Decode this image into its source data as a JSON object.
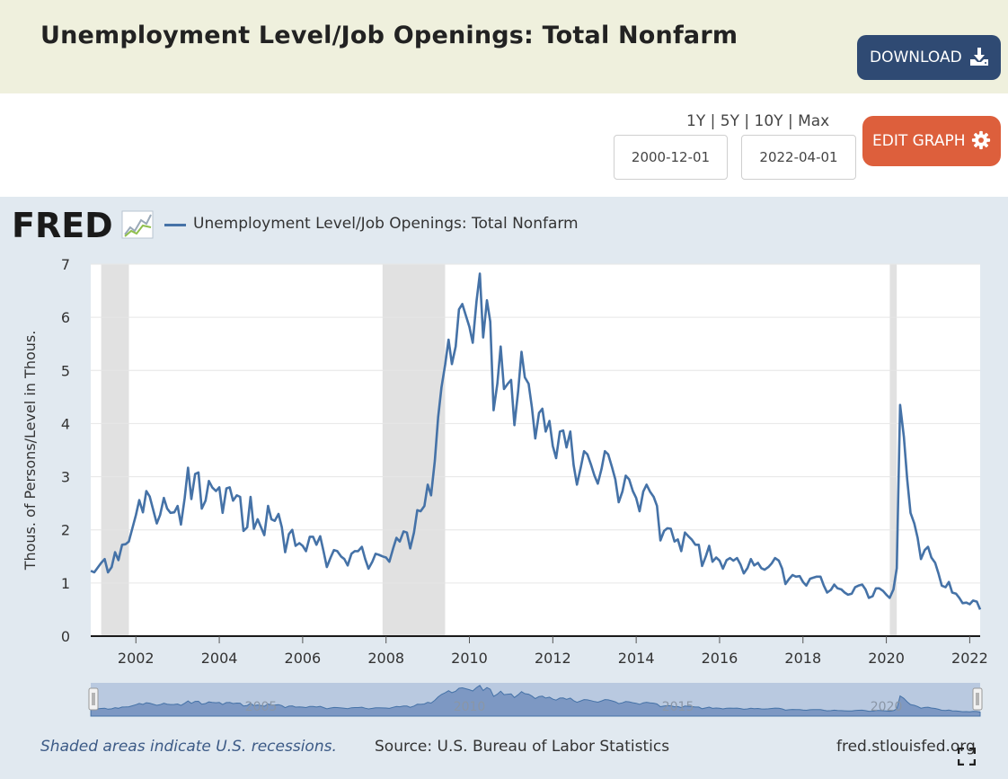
{
  "header": {
    "title": "Unemployment Level/Job Openings: Total Nonfarm",
    "download_label": "DOWNLOAD",
    "download_icon": "download-icon"
  },
  "controls": {
    "range_1y": "1Y",
    "range_5y": "5Y",
    "range_10y": "10Y",
    "range_max": "Max",
    "separator": "|",
    "start_date": "2000-12-01",
    "end_date": "2022-04-01",
    "edit_label": "EDIT GRAPH",
    "edit_icon": "gear-icon"
  },
  "graph": {
    "logo_text": "FRED",
    "logo_icon": "fred-chart-icon",
    "legend_label": "Unemployment Level/Job Openings: Total Nonfarm",
    "footer_note": "Shaded areas indicate U.S. recessions.",
    "footer_source": "Source: U.S. Bureau of Labor Statistics",
    "footer_site": "fred.stlouisfed.org",
    "fullscreen_icon": "fullscreen-icon"
  },
  "colors": {
    "series": "#4572a7",
    "recession": "#e1e1e1",
    "download_bg": "#2f4a73",
    "edit_bg": "#dd5f3c",
    "header_bg": "#eff0dd",
    "graph_bg": "#e1e9f0"
  },
  "chart_data": {
    "type": "line",
    "title": "",
    "xlabel": "",
    "ylabel": "Thous. of Persons/Level in Thous.",
    "xlim": [
      2000.917,
      2022.25
    ],
    "ylim": [
      0,
      7
    ],
    "yticks": [
      0,
      1,
      2,
      3,
      4,
      5,
      6,
      7
    ],
    "xticks": [
      2002,
      2004,
      2006,
      2008,
      2010,
      2012,
      2014,
      2016,
      2018,
      2020,
      2022
    ],
    "navigator_labels": [
      "2005",
      "2010",
      "2015",
      "2020"
    ],
    "grid": true,
    "legend_position": "top-left",
    "recessions": [
      [
        2001.167,
        2001.833
      ],
      [
        2007.917,
        2009.417
      ],
      [
        2020.083,
        2020.25
      ]
    ],
    "series": [
      {
        "name": "Unemployment Level/Job Openings: Total Nonfarm",
        "points": [
          [
            2000.92,
            1.23
          ],
          [
            2001.0,
            1.2
          ],
          [
            2001.17,
            1.38
          ],
          [
            2001.25,
            1.45
          ],
          [
            2001.33,
            1.2
          ],
          [
            2001.42,
            1.3
          ],
          [
            2001.5,
            1.58
          ],
          [
            2001.58,
            1.43
          ],
          [
            2001.67,
            1.72
          ],
          [
            2001.75,
            1.73
          ],
          [
            2001.83,
            1.78
          ],
          [
            2002.0,
            2.28
          ],
          [
            2002.08,
            2.56
          ],
          [
            2002.17,
            2.33
          ],
          [
            2002.25,
            2.73
          ],
          [
            2002.33,
            2.63
          ],
          [
            2002.5,
            2.12
          ],
          [
            2002.58,
            2.28
          ],
          [
            2002.67,
            2.6
          ],
          [
            2002.75,
            2.4
          ],
          [
            2002.83,
            2.32
          ],
          [
            2002.92,
            2.33
          ],
          [
            2003.0,
            2.45
          ],
          [
            2003.08,
            2.1
          ],
          [
            2003.17,
            2.6
          ],
          [
            2003.25,
            3.17
          ],
          [
            2003.33,
            2.58
          ],
          [
            2003.42,
            3.05
          ],
          [
            2003.5,
            3.08
          ],
          [
            2003.58,
            2.4
          ],
          [
            2003.67,
            2.55
          ],
          [
            2003.75,
            2.92
          ],
          [
            2003.83,
            2.8
          ],
          [
            2003.92,
            2.73
          ],
          [
            2004.0,
            2.8
          ],
          [
            2004.08,
            2.32
          ],
          [
            2004.17,
            2.78
          ],
          [
            2004.25,
            2.8
          ],
          [
            2004.33,
            2.55
          ],
          [
            2004.42,
            2.65
          ],
          [
            2004.5,
            2.62
          ],
          [
            2004.58,
            1.98
          ],
          [
            2004.67,
            2.05
          ],
          [
            2004.75,
            2.62
          ],
          [
            2004.83,
            2.02
          ],
          [
            2004.92,
            2.2
          ],
          [
            2005.0,
            2.05
          ],
          [
            2005.08,
            1.9
          ],
          [
            2005.17,
            2.45
          ],
          [
            2005.25,
            2.2
          ],
          [
            2005.33,
            2.17
          ],
          [
            2005.42,
            2.3
          ],
          [
            2005.5,
            2.05
          ],
          [
            2005.58,
            1.58
          ],
          [
            2005.67,
            1.92
          ],
          [
            2005.75,
            2.0
          ],
          [
            2005.83,
            1.7
          ],
          [
            2005.92,
            1.75
          ],
          [
            2006.0,
            1.7
          ],
          [
            2006.08,
            1.6
          ],
          [
            2006.17,
            1.87
          ],
          [
            2006.25,
            1.87
          ],
          [
            2006.33,
            1.72
          ],
          [
            2006.42,
            1.88
          ],
          [
            2006.5,
            1.6
          ],
          [
            2006.58,
            1.3
          ],
          [
            2006.67,
            1.48
          ],
          [
            2006.75,
            1.62
          ],
          [
            2006.83,
            1.6
          ],
          [
            2006.92,
            1.5
          ],
          [
            2007.0,
            1.45
          ],
          [
            2007.08,
            1.33
          ],
          [
            2007.17,
            1.55
          ],
          [
            2007.25,
            1.6
          ],
          [
            2007.33,
            1.6
          ],
          [
            2007.42,
            1.68
          ],
          [
            2007.5,
            1.45
          ],
          [
            2007.58,
            1.27
          ],
          [
            2007.67,
            1.4
          ],
          [
            2007.75,
            1.55
          ],
          [
            2007.83,
            1.53
          ],
          [
            2007.92,
            1.5
          ],
          [
            2008.0,
            1.48
          ],
          [
            2008.08,
            1.4
          ],
          [
            2008.17,
            1.65
          ],
          [
            2008.25,
            1.85
          ],
          [
            2008.33,
            1.78
          ],
          [
            2008.42,
            1.97
          ],
          [
            2008.5,
            1.95
          ],
          [
            2008.58,
            1.65
          ],
          [
            2008.67,
            1.95
          ],
          [
            2008.75,
            2.37
          ],
          [
            2008.83,
            2.35
          ],
          [
            2008.92,
            2.45
          ],
          [
            2009.0,
            2.85
          ],
          [
            2009.08,
            2.65
          ],
          [
            2009.17,
            3.3
          ],
          [
            2009.25,
            4.12
          ],
          [
            2009.33,
            4.68
          ],
          [
            2009.42,
            5.12
          ],
          [
            2009.5,
            5.58
          ],
          [
            2009.58,
            5.12
          ],
          [
            2009.67,
            5.45
          ],
          [
            2009.75,
            6.15
          ],
          [
            2009.83,
            6.25
          ],
          [
            2009.92,
            6.02
          ],
          [
            2010.0,
            5.82
          ],
          [
            2010.08,
            5.52
          ],
          [
            2010.17,
            6.3
          ],
          [
            2010.25,
            6.82
          ],
          [
            2010.33,
            5.62
          ],
          [
            2010.42,
            6.32
          ],
          [
            2010.5,
            5.92
          ],
          [
            2010.58,
            4.25
          ],
          [
            2010.67,
            4.75
          ],
          [
            2010.75,
            5.45
          ],
          [
            2010.83,
            4.65
          ],
          [
            2010.92,
            4.75
          ],
          [
            2011.0,
            4.82
          ],
          [
            2011.08,
            3.97
          ],
          [
            2011.17,
            4.62
          ],
          [
            2011.25,
            5.35
          ],
          [
            2011.33,
            4.87
          ],
          [
            2011.42,
            4.75
          ],
          [
            2011.5,
            4.3
          ],
          [
            2011.58,
            3.72
          ],
          [
            2011.67,
            4.2
          ],
          [
            2011.75,
            4.28
          ],
          [
            2011.83,
            3.85
          ],
          [
            2011.92,
            4.05
          ],
          [
            2012.0,
            3.58
          ],
          [
            2012.08,
            3.35
          ],
          [
            2012.17,
            3.85
          ],
          [
            2012.25,
            3.87
          ],
          [
            2012.33,
            3.55
          ],
          [
            2012.42,
            3.85
          ],
          [
            2012.5,
            3.22
          ],
          [
            2012.58,
            2.85
          ],
          [
            2012.67,
            3.17
          ],
          [
            2012.75,
            3.48
          ],
          [
            2012.83,
            3.42
          ],
          [
            2012.92,
            3.22
          ],
          [
            2013.0,
            3.02
          ],
          [
            2013.08,
            2.87
          ],
          [
            2013.17,
            3.15
          ],
          [
            2013.25,
            3.48
          ],
          [
            2013.33,
            3.42
          ],
          [
            2013.42,
            3.18
          ],
          [
            2013.5,
            2.95
          ],
          [
            2013.58,
            2.52
          ],
          [
            2013.67,
            2.72
          ],
          [
            2013.75,
            3.02
          ],
          [
            2013.83,
            2.95
          ],
          [
            2013.92,
            2.73
          ],
          [
            2014.0,
            2.6
          ],
          [
            2014.08,
            2.35
          ],
          [
            2014.17,
            2.72
          ],
          [
            2014.25,
            2.85
          ],
          [
            2014.33,
            2.72
          ],
          [
            2014.42,
            2.62
          ],
          [
            2014.5,
            2.45
          ],
          [
            2014.58,
            1.8
          ],
          [
            2014.67,
            1.98
          ],
          [
            2014.75,
            2.03
          ],
          [
            2014.83,
            2.02
          ],
          [
            2014.92,
            1.78
          ],
          [
            2015.0,
            1.82
          ],
          [
            2015.08,
            1.6
          ],
          [
            2015.17,
            1.95
          ],
          [
            2015.25,
            1.88
          ],
          [
            2015.33,
            1.82
          ],
          [
            2015.42,
            1.72
          ],
          [
            2015.5,
            1.72
          ],
          [
            2015.58,
            1.32
          ],
          [
            2015.67,
            1.5
          ],
          [
            2015.75,
            1.7
          ],
          [
            2015.83,
            1.4
          ],
          [
            2015.92,
            1.48
          ],
          [
            2016.0,
            1.42
          ],
          [
            2016.08,
            1.27
          ],
          [
            2016.17,
            1.43
          ],
          [
            2016.25,
            1.47
          ],
          [
            2016.33,
            1.42
          ],
          [
            2016.42,
            1.47
          ],
          [
            2016.5,
            1.35
          ],
          [
            2016.58,
            1.18
          ],
          [
            2016.67,
            1.28
          ],
          [
            2016.75,
            1.45
          ],
          [
            2016.83,
            1.33
          ],
          [
            2016.92,
            1.38
          ],
          [
            2017.0,
            1.28
          ],
          [
            2017.08,
            1.25
          ],
          [
            2017.17,
            1.3
          ],
          [
            2017.25,
            1.37
          ],
          [
            2017.33,
            1.47
          ],
          [
            2017.42,
            1.42
          ],
          [
            2017.5,
            1.27
          ],
          [
            2017.58,
            0.98
          ],
          [
            2017.67,
            1.08
          ],
          [
            2017.75,
            1.15
          ],
          [
            2017.83,
            1.12
          ],
          [
            2017.92,
            1.13
          ],
          [
            2018.0,
            1.02
          ],
          [
            2018.08,
            0.95
          ],
          [
            2018.17,
            1.08
          ],
          [
            2018.25,
            1.1
          ],
          [
            2018.33,
            1.12
          ],
          [
            2018.42,
            1.12
          ],
          [
            2018.5,
            0.95
          ],
          [
            2018.58,
            0.82
          ],
          [
            2018.67,
            0.87
          ],
          [
            2018.75,
            0.97
          ],
          [
            2018.83,
            0.9
          ],
          [
            2018.92,
            0.88
          ],
          [
            2019.0,
            0.82
          ],
          [
            2019.08,
            0.78
          ],
          [
            2019.17,
            0.8
          ],
          [
            2019.25,
            0.92
          ],
          [
            2019.33,
            0.95
          ],
          [
            2019.42,
            0.97
          ],
          [
            2019.5,
            0.88
          ],
          [
            2019.58,
            0.72
          ],
          [
            2019.67,
            0.75
          ],
          [
            2019.75,
            0.9
          ],
          [
            2019.83,
            0.9
          ],
          [
            2019.92,
            0.85
          ],
          [
            2020.0,
            0.78
          ],
          [
            2020.08,
            0.72
          ],
          [
            2020.17,
            0.88
          ],
          [
            2020.25,
            1.28
          ],
          [
            2020.33,
            4.35
          ],
          [
            2020.42,
            3.75
          ],
          [
            2020.5,
            2.95
          ],
          [
            2020.58,
            2.32
          ],
          [
            2020.67,
            2.12
          ],
          [
            2020.75,
            1.85
          ],
          [
            2020.83,
            1.45
          ],
          [
            2020.92,
            1.62
          ],
          [
            2021.0,
            1.68
          ],
          [
            2021.08,
            1.48
          ],
          [
            2021.17,
            1.38
          ],
          [
            2021.25,
            1.18
          ],
          [
            2021.33,
            0.95
          ],
          [
            2021.42,
            0.92
          ],
          [
            2021.5,
            1.02
          ],
          [
            2021.58,
            0.82
          ],
          [
            2021.67,
            0.8
          ],
          [
            2021.75,
            0.72
          ],
          [
            2021.83,
            0.62
          ],
          [
            2021.92,
            0.63
          ],
          [
            2022.0,
            0.6
          ],
          [
            2022.08,
            0.67
          ],
          [
            2022.17,
            0.65
          ],
          [
            2022.25,
            0.5
          ]
        ]
      }
    ]
  }
}
